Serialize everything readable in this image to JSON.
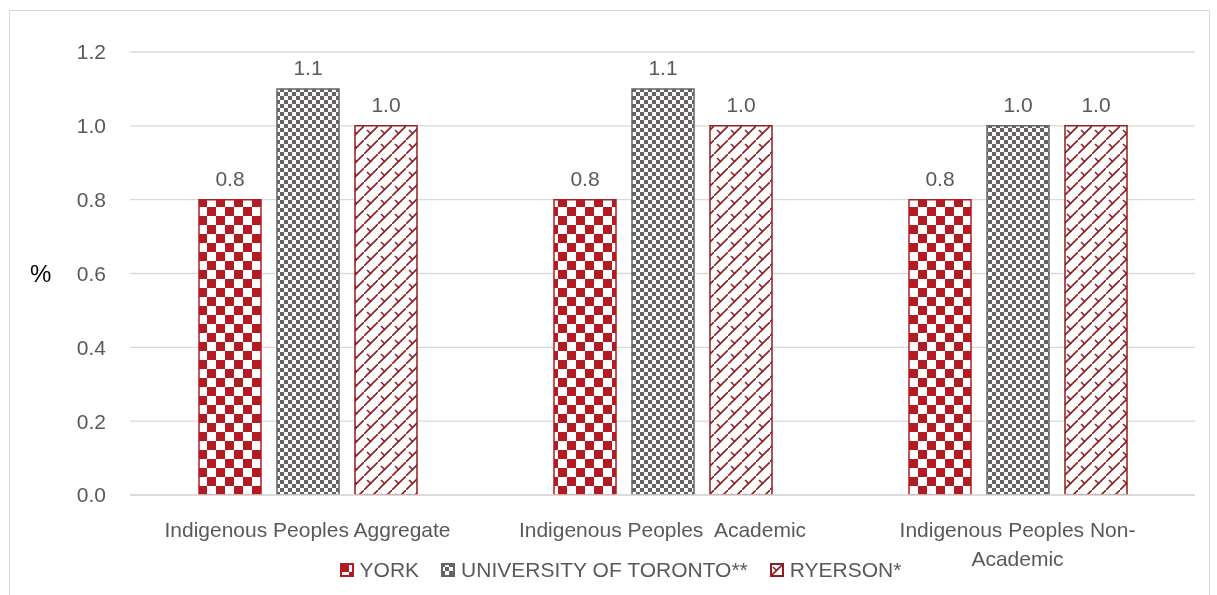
{
  "chart_data": {
    "type": "bar",
    "ylabel": "%",
    "categories": [
      "Indigenous Peoples Aggregate",
      "Indigenous Peoples  Academic",
      "Indigenous Peoples Non-Academic"
    ],
    "series": [
      {
        "name": "YORK",
        "color": "#b31b23",
        "values": [
          0.8,
          0.8,
          0.8
        ],
        "value_labels": [
          "0.8",
          "0.8",
          "0.8"
        ]
      },
      {
        "name": "UNIVERSITY OF TORONTO**",
        "color": "#686363",
        "values": [
          1.1,
          1.1,
          1.0
        ],
        "value_labels": [
          "1.1",
          "1.1",
          "1.0"
        ]
      },
      {
        "name": "RYERSON*",
        "color": "#8f1d21",
        "values": [
          1.0,
          1.0,
          1.0
        ],
        "value_labels": [
          "1.0",
          "1.0",
          "1.0"
        ]
      }
    ],
    "ylim": [
      0,
      1.2
    ],
    "yticks": [
      {
        "value": 0,
        "label": "0.0"
      },
      0.2,
      0.4,
      0.6,
      0.8,
      {
        "value": 1,
        "label": "1.0"
      },
      1.2
    ],
    "grid": "y",
    "legend": "bottom"
  }
}
